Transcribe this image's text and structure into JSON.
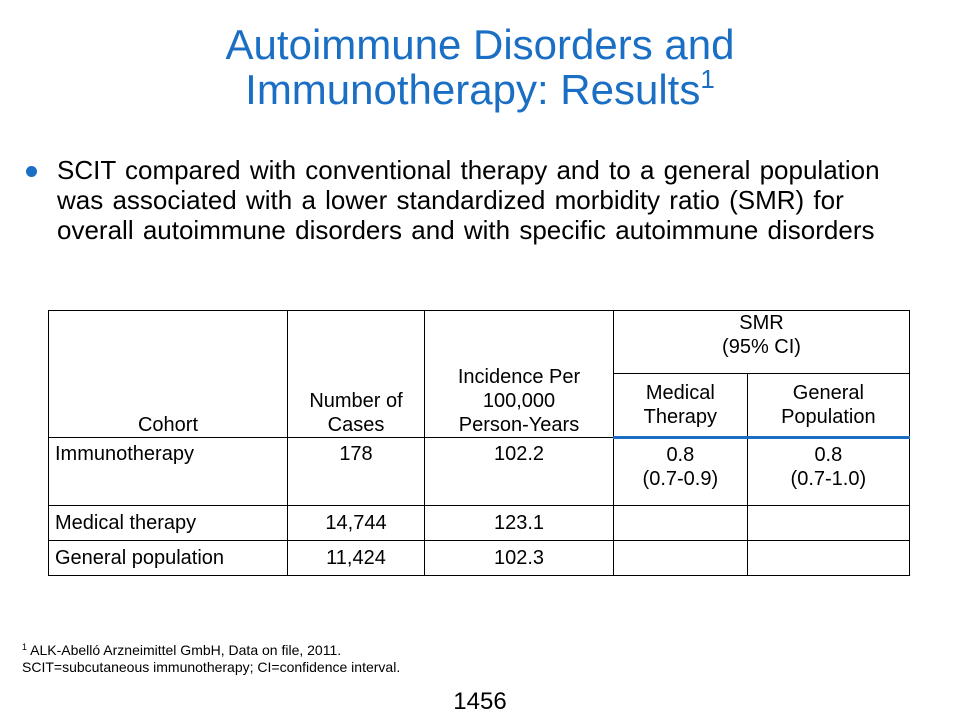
{
  "slide": {
    "title_line1": "Autoimmune Disorders and",
    "title_line2": "Immunotherapy: Results",
    "title_ref": "1",
    "bullet": "SCIT compared with conventional therapy and to a general population was associated with a lower standardized morbidity ratio (SMR) for overall autoimmune disorders and with specific autoimmune disorders",
    "accent_color": "#1a6fc4"
  },
  "table": {
    "headers": {
      "cohort": "Cohort",
      "cases_line1": "Number of",
      "cases_line2": "Cases",
      "incidence_line1": "Incidence Per",
      "incidence_line2": "100,000",
      "incidence_line3": "Person-Years",
      "smr_line1": "SMR",
      "smr_line2": "(95% CI)",
      "medical_line1": "Medical",
      "medical_line2": "Therapy",
      "general_line1": "General",
      "general_line2": "Population"
    },
    "rows": [
      {
        "cohort": "Immunotherapy",
        "cases": "178",
        "incidence": "102.2",
        "smr_medical": "0.8",
        "smr_medical_ci": "(0.7-0.9)",
        "smr_general": "0.8",
        "smr_general_ci": "(0.7-1.0)"
      },
      {
        "cohort": "Medical therapy",
        "cases": "14,744",
        "incidence": "123.1",
        "smr_medical": "",
        "smr_medical_ci": "",
        "smr_general": "",
        "smr_general_ci": ""
      },
      {
        "cohort": "General population",
        "cases": "11,424",
        "incidence": "102.3",
        "smr_medical": "",
        "smr_medical_ci": "",
        "smr_general": "",
        "smr_general_ci": ""
      }
    ]
  },
  "footnote": {
    "ref_mark": "1",
    "line1": " ALK-Abelló Arzneimittel GmbH, Data on file, 2011.",
    "line2": "SCIT=subcutaneous immunotherapy; CI=confidence interval."
  },
  "slide_number": "1456"
}
